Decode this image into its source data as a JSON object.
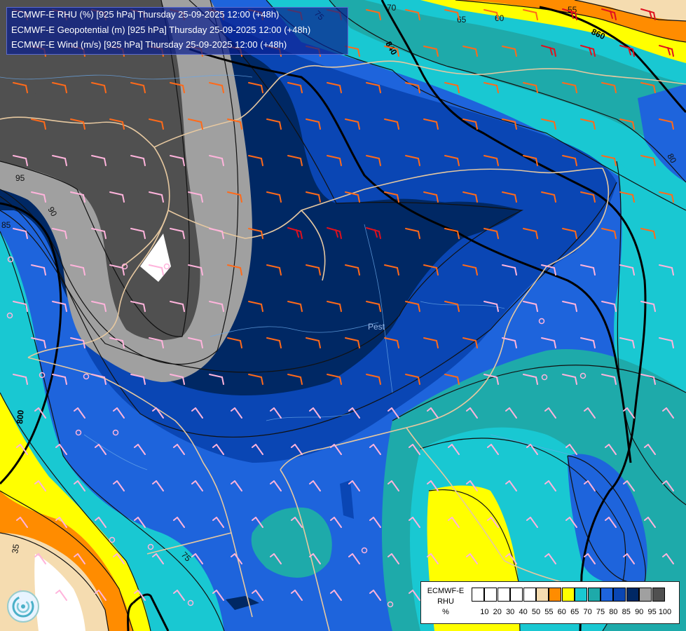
{
  "title": {
    "line1": "ECMWF-E RHU (%) [925 hPa] Thursday 25-09-2025 12:00 (+48h)",
    "line2": "ECMWF-E Geopotential (m) [925 hPa] Thursday 25-09-2025 12:00 (+48h)",
    "line3": "ECMWF-E Wind (m/s) [925 hPa] Thursday 25-09-2025 12:00 (+48h)"
  },
  "legend": {
    "title_lines": [
      "ECMWF-E",
      "RHU",
      "%"
    ],
    "ticks": [
      "10",
      "20",
      "30",
      "40",
      "50",
      "55",
      "60",
      "65",
      "70",
      "75",
      "80",
      "85",
      "90",
      "95",
      "100"
    ],
    "colors": [
      "#ffffff",
      "#ffffff",
      "#ffffff",
      "#ffffff",
      "#ffffff",
      "#f5dcb0",
      "#ff8c00",
      "#ffff00",
      "#19c8d2",
      "#1eaaaa",
      "#1e64dc",
      "#0a46b4",
      "#002864",
      "#a0a0a0",
      "#505050"
    ]
  },
  "contour_labels": {
    "geopotential": [
      "800",
      "840",
      "860"
    ],
    "rhu": [
      "70",
      "75",
      "65",
      "60",
      "55",
      "95",
      "90",
      "85",
      "80",
      "75",
      "35"
    ]
  },
  "map_text": [
    "Pest"
  ],
  "colors": {
    "white": "#ffffff",
    "tan": "#f5dcb0",
    "orange": "#ff8c00",
    "yellow": "#ffff00",
    "cyan": "#19c8d2",
    "teal": "#1eaaaa",
    "blue": "#1e64dc",
    "mid_blue": "#0a46b4",
    "navy": "#002864",
    "gray": "#a0a0a0",
    "dark_gray": "#505050",
    "border": "#e6c8a0",
    "wind_orange": "#ff6a1a",
    "wind_pink": "#ffb4dc",
    "wind_red": "#e0101e"
  }
}
